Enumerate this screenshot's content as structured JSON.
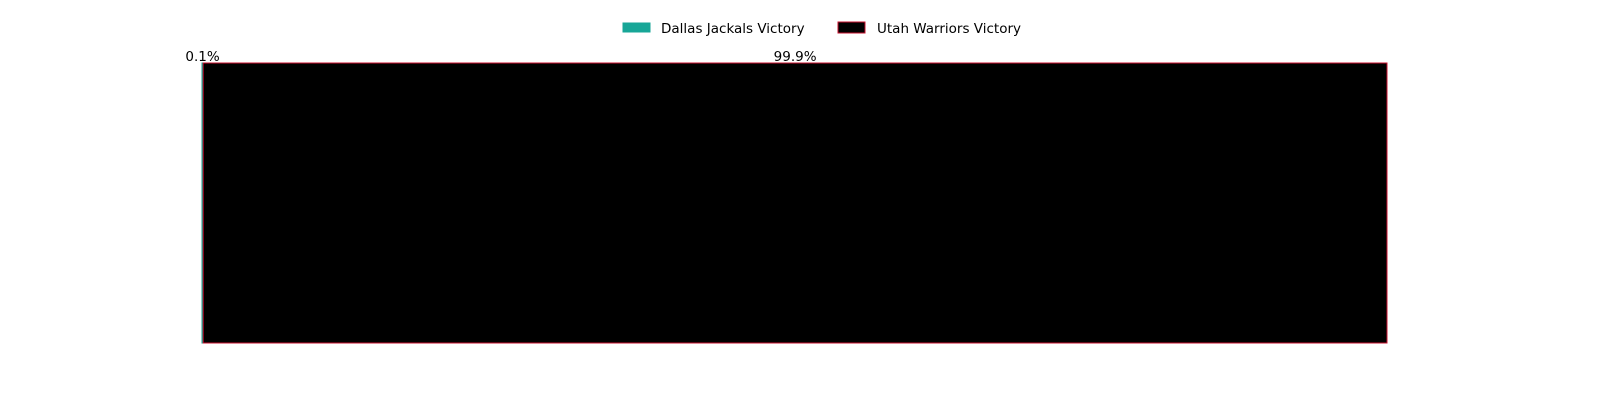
{
  "chart_data": {
    "type": "bar",
    "orientation": "horizontal",
    "stacked": true,
    "categories": [
      ""
    ],
    "series": [
      {
        "name": "Dallas Jackals Victory",
        "values": [
          0.1
        ],
        "color": "#17a697",
        "edge_color": "#17a697"
      },
      {
        "name": "Utah Warriors Victory",
        "values": [
          99.9
        ],
        "color": "#000000",
        "edge_color": "#c8102e"
      }
    ],
    "data_labels": [
      "0.1%",
      "99.9%"
    ],
    "xlim": [
      0,
      100
    ],
    "axes_visible": false,
    "grid": false,
    "legend_position": "top-center"
  }
}
